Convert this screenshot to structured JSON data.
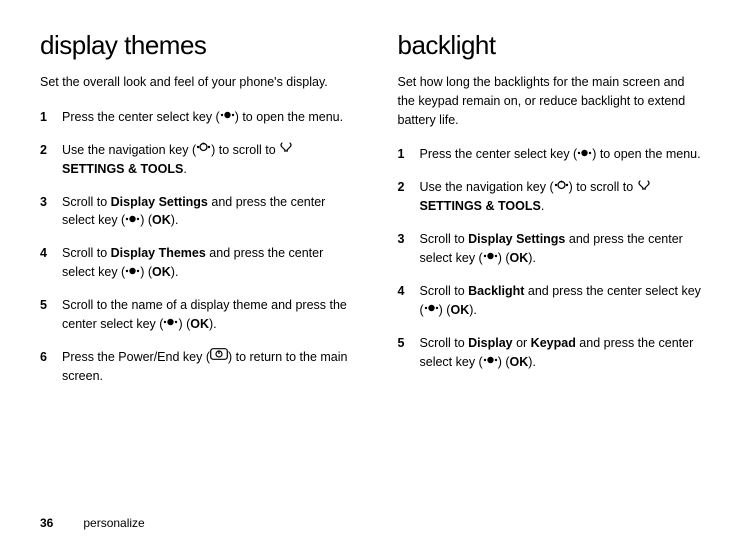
{
  "left": {
    "heading": "display themes",
    "intro": "Set the overall look and feel of your phone's display.",
    "steps": [
      {
        "n": "1",
        "parts": [
          {
            "t": "Press the center select key ("
          },
          {
            "icon": "center"
          },
          {
            "t": ") to open the menu."
          }
        ]
      },
      {
        "n": "2",
        "parts": [
          {
            "t": "Use the navigation key ("
          },
          {
            "icon": "nav"
          },
          {
            "t": ") to scroll to "
          },
          {
            "icon": "tools"
          },
          {
            "t": " "
          },
          {
            "cond": "SETTINGS & TOOLS"
          },
          {
            "t": "."
          }
        ]
      },
      {
        "n": "3",
        "parts": [
          {
            "t": "Scroll to "
          },
          {
            "cond": "Display Settings"
          },
          {
            "t": " and press the center select key ("
          },
          {
            "icon": "center"
          },
          {
            "t": ") ("
          },
          {
            "cond": "OK"
          },
          {
            "t": ")."
          }
        ]
      },
      {
        "n": "4",
        "parts": [
          {
            "t": "Scroll to "
          },
          {
            "cond": "Display Themes"
          },
          {
            "t": " and press the center select key ("
          },
          {
            "icon": "center"
          },
          {
            "t": ") ("
          },
          {
            "cond": "OK"
          },
          {
            "t": ")."
          }
        ]
      },
      {
        "n": "5",
        "parts": [
          {
            "t": "Scroll to the name of a display theme and press the center select key ("
          },
          {
            "icon": "center"
          },
          {
            "t": ") ("
          },
          {
            "cond": "OK"
          },
          {
            "t": ")."
          }
        ]
      },
      {
        "n": "6",
        "parts": [
          {
            "t": "Press the Power/End key ("
          },
          {
            "icon": "power"
          },
          {
            "t": ") to return to the main screen."
          }
        ]
      }
    ]
  },
  "right": {
    "heading": "backlight",
    "intro": "Set how long the backlights for the main screen and the keypad remain on, or reduce backlight to extend battery life.",
    "steps": [
      {
        "n": "1",
        "parts": [
          {
            "t": "Press the center select key ("
          },
          {
            "icon": "center"
          },
          {
            "t": ") to open the menu."
          }
        ]
      },
      {
        "n": "2",
        "parts": [
          {
            "t": "Use the navigation key ("
          },
          {
            "icon": "nav"
          },
          {
            "t": ") to scroll to "
          },
          {
            "icon": "tools"
          },
          {
            "t": " "
          },
          {
            "cond": "SETTINGS & TOOLS"
          },
          {
            "t": "."
          }
        ]
      },
      {
        "n": "3",
        "parts": [
          {
            "t": "Scroll to "
          },
          {
            "cond": "Display Settings"
          },
          {
            "t": " and press the center select key ("
          },
          {
            "icon": "center"
          },
          {
            "t": ") ("
          },
          {
            "cond": "OK"
          },
          {
            "t": ")."
          }
        ]
      },
      {
        "n": "4",
        "parts": [
          {
            "t": "Scroll to "
          },
          {
            "cond": "Backlight"
          },
          {
            "t": " and press the center select key ("
          },
          {
            "icon": "center"
          },
          {
            "t": ") ("
          },
          {
            "cond": "OK"
          },
          {
            "t": ")."
          }
        ]
      },
      {
        "n": "5",
        "parts": [
          {
            "t": "Scroll to "
          },
          {
            "cond": "Display"
          },
          {
            "t": " or "
          },
          {
            "cond": "Keypad"
          },
          {
            "t": " and press the center select key ("
          },
          {
            "icon": "center"
          },
          {
            "t": ") ("
          },
          {
            "cond": "OK"
          },
          {
            "t": ")."
          }
        ]
      }
    ]
  },
  "footer": {
    "page": "36",
    "label": "personalize"
  }
}
